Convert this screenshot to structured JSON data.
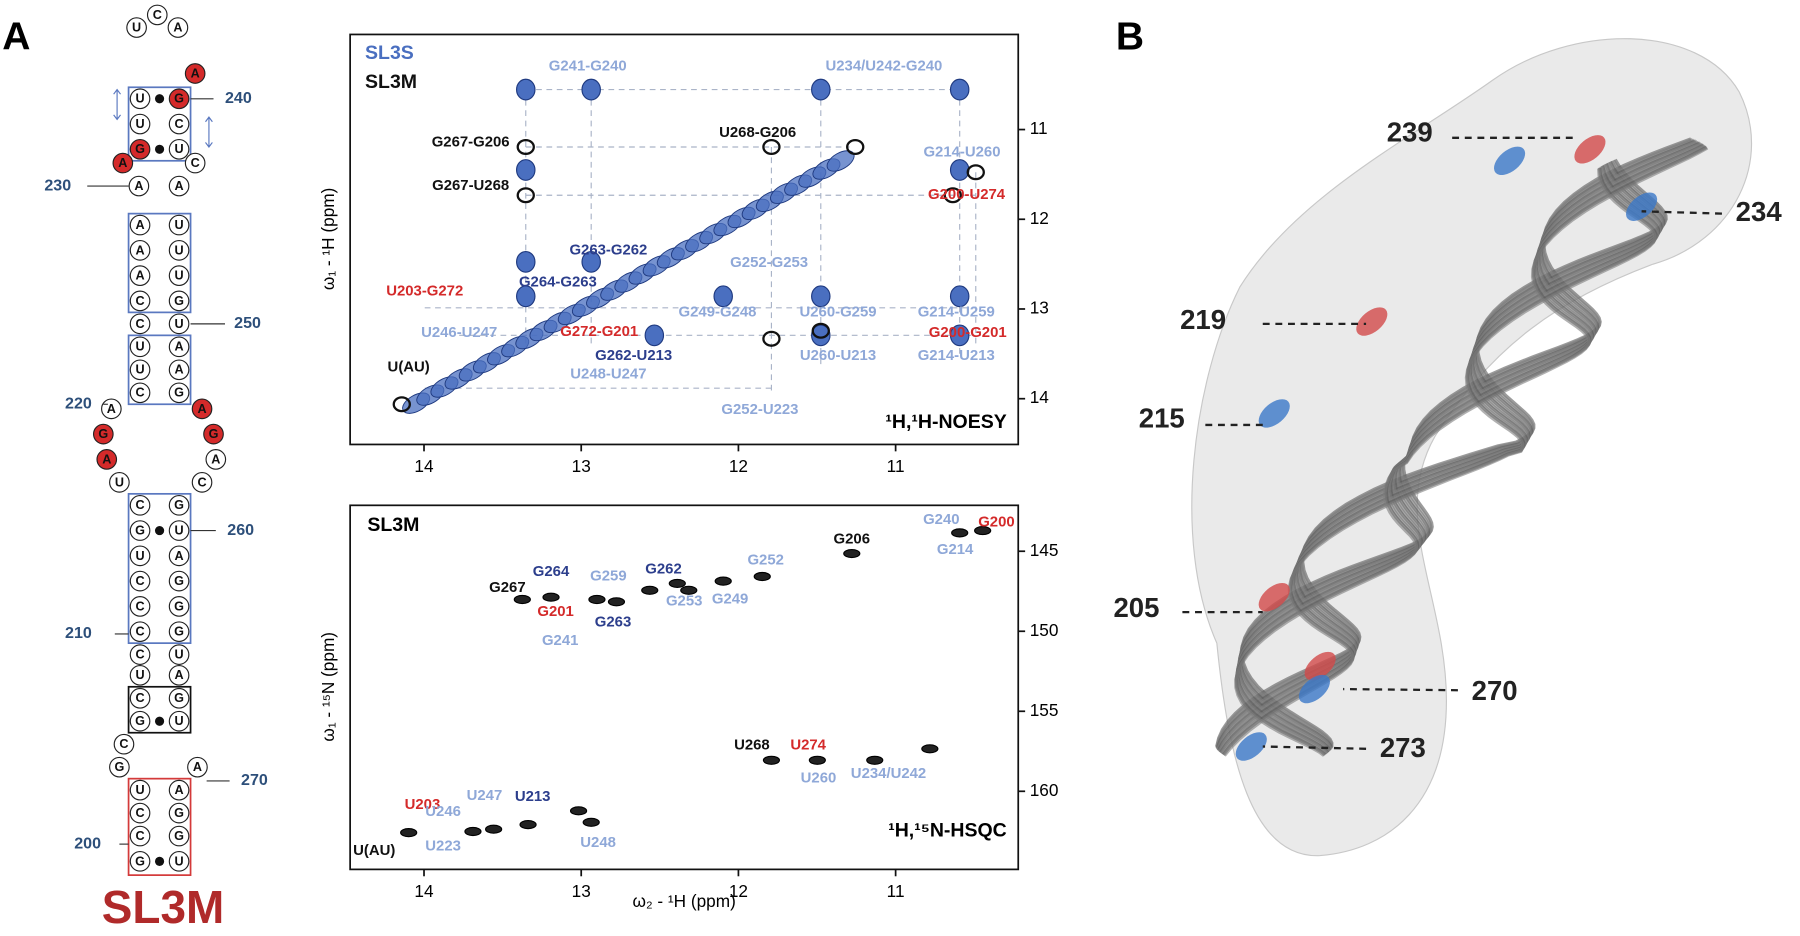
{
  "panel_labels": [
    "A",
    "B"
  ],
  "secondary_structure": {
    "nucleotides": [
      "C",
      "U",
      "A",
      "A",
      "U",
      "G",
      "U",
      "C",
      "G",
      "U",
      "A",
      "C",
      "A",
      "A",
      "A",
      "U",
      "A",
      "U",
      "A",
      "U",
      "C",
      "G",
      "C",
      "U",
      "U",
      "A",
      "U",
      "A",
      "C",
      "G",
      "A",
      "G",
      "A",
      "U",
      "A",
      "G",
      "A",
      "C",
      "C",
      "G",
      "G",
      "U",
      "U",
      "A",
      "C",
      "G",
      "C",
      "G",
      "C",
      "G",
      "C",
      "U",
      "U",
      "A",
      "C",
      "G",
      "G",
      "U",
      "C",
      "G",
      "A",
      "U",
      "A",
      "C",
      "G",
      "C",
      "G",
      "G",
      "U"
    ],
    "numbers": [
      240,
      230,
      250,
      220,
      260,
      210,
      270,
      200
    ],
    "name": "SL3M"
  },
  "noesy": {
    "legend": [
      {
        "name": "SL3S",
        "color": "#4a6fc0"
      },
      {
        "name": "SL3M",
        "color": "#111111"
      }
    ],
    "ylabel": "ω₁ - ¹H  (ppm)",
    "xlim": [
      14.47,
      10.22
    ],
    "ylim": [
      9.94,
      14.51
    ],
    "xticks": [
      14,
      13,
      12,
      11
    ],
    "yticks": [
      11,
      12,
      13,
      14
    ],
    "experiment": "¹H,¹H-NOESY",
    "peak_labels": [
      {
        "text": "G241-G240",
        "color": "#8fa8d8"
      },
      {
        "text": "U234/U242-G240",
        "color": "#8fa8d8"
      },
      {
        "text": "G267-G206",
        "color": "#111111"
      },
      {
        "text": "U268-G206",
        "color": "#111111"
      },
      {
        "text": "G214-U260",
        "color": "#8fa8d8"
      },
      {
        "text": "G267-U268",
        "color": "#111111"
      },
      {
        "text": "G200-U274",
        "color": "#d42a2a"
      },
      {
        "text": "G263-G262",
        "color": "#2c3e8c"
      },
      {
        "text": "G252-G253",
        "color": "#8fa8d8"
      },
      {
        "text": "U203-G272",
        "color": "#d42a2a"
      },
      {
        "text": "G264-G263",
        "color": "#2c3e8c"
      },
      {
        "text": "G249-G248",
        "color": "#8fa8d8"
      },
      {
        "text": "U260-G259",
        "color": "#8fa8d8"
      },
      {
        "text": "G214-U259",
        "color": "#8fa8d8"
      },
      {
        "text": "U246-U247",
        "color": "#8fa8d8"
      },
      {
        "text": "G272-G201",
        "color": "#d42a2a"
      },
      {
        "text": "G200-G201",
        "color": "#d42a2a"
      },
      {
        "text": "G262-U213",
        "color": "#2c3e8c"
      },
      {
        "text": "U260-U213",
        "color": "#8fa8d8"
      },
      {
        "text": "G214-U213",
        "color": "#8fa8d8"
      },
      {
        "text": "U248-U247",
        "color": "#8fa8d8"
      },
      {
        "text": "G252-U223",
        "color": "#8fa8d8"
      },
      {
        "text": "U(AU)",
        "color": "#111111"
      }
    ]
  },
  "hsqc": {
    "sample": "SL3M",
    "xlabel": "ω₂ - ¹H  (ppm)",
    "ylabel": "ω₁ - ¹⁵N  (ppm)",
    "xlim": [
      14.47,
      10.22
    ],
    "ylim": [
      142.13,
      164.88
    ],
    "xticks": [
      14,
      13,
      12,
      11
    ],
    "yticks": [
      145,
      150,
      155,
      160
    ],
    "experiment": "¹H,¹⁵N-HSQC",
    "peak_labels": [
      {
        "text": "G240",
        "color": "#8fa8d8"
      },
      {
        "text": "G200",
        "color": "#d42a2a"
      },
      {
        "text": "G214",
        "color": "#8fa8d8"
      },
      {
        "text": "G206",
        "color": "#111111"
      },
      {
        "text": "G252",
        "color": "#8fa8d8"
      },
      {
        "text": "G264",
        "color": "#2c3e8c"
      },
      {
        "text": "G259",
        "color": "#8fa8d8"
      },
      {
        "text": "G262",
        "color": "#2c3e8c"
      },
      {
        "text": "G267",
        "color": "#111111"
      },
      {
        "text": "G253",
        "color": "#8fa8d8"
      },
      {
        "text": "G249",
        "color": "#8fa8d8"
      },
      {
        "text": "G201",
        "color": "#d42a2a"
      },
      {
        "text": "G263",
        "color": "#2c3e8c"
      },
      {
        "text": "G241",
        "color": "#8fa8d8"
      },
      {
        "text": "U268",
        "color": "#111111"
      },
      {
        "text": "U274",
        "color": "#d42a2a"
      },
      {
        "text": "U260",
        "color": "#8fa8d8"
      },
      {
        "text": "U234/U242",
        "color": "#8fa8d8"
      },
      {
        "text": "U203",
        "color": "#d42a2a"
      },
      {
        "text": "U247",
        "color": "#8fa8d8"
      },
      {
        "text": "U213",
        "color": "#2c3e8c"
      },
      {
        "text": "U246",
        "color": "#8fa8d8"
      },
      {
        "text": "U(AU)",
        "color": "#111111"
      },
      {
        "text": "U223",
        "color": "#8fa8d8"
      },
      {
        "text": "U248",
        "color": "#8fa8d8"
      }
    ]
  },
  "structure_3d": {
    "residues": [
      239,
      234,
      219,
      215,
      205,
      270,
      273
    ]
  }
}
